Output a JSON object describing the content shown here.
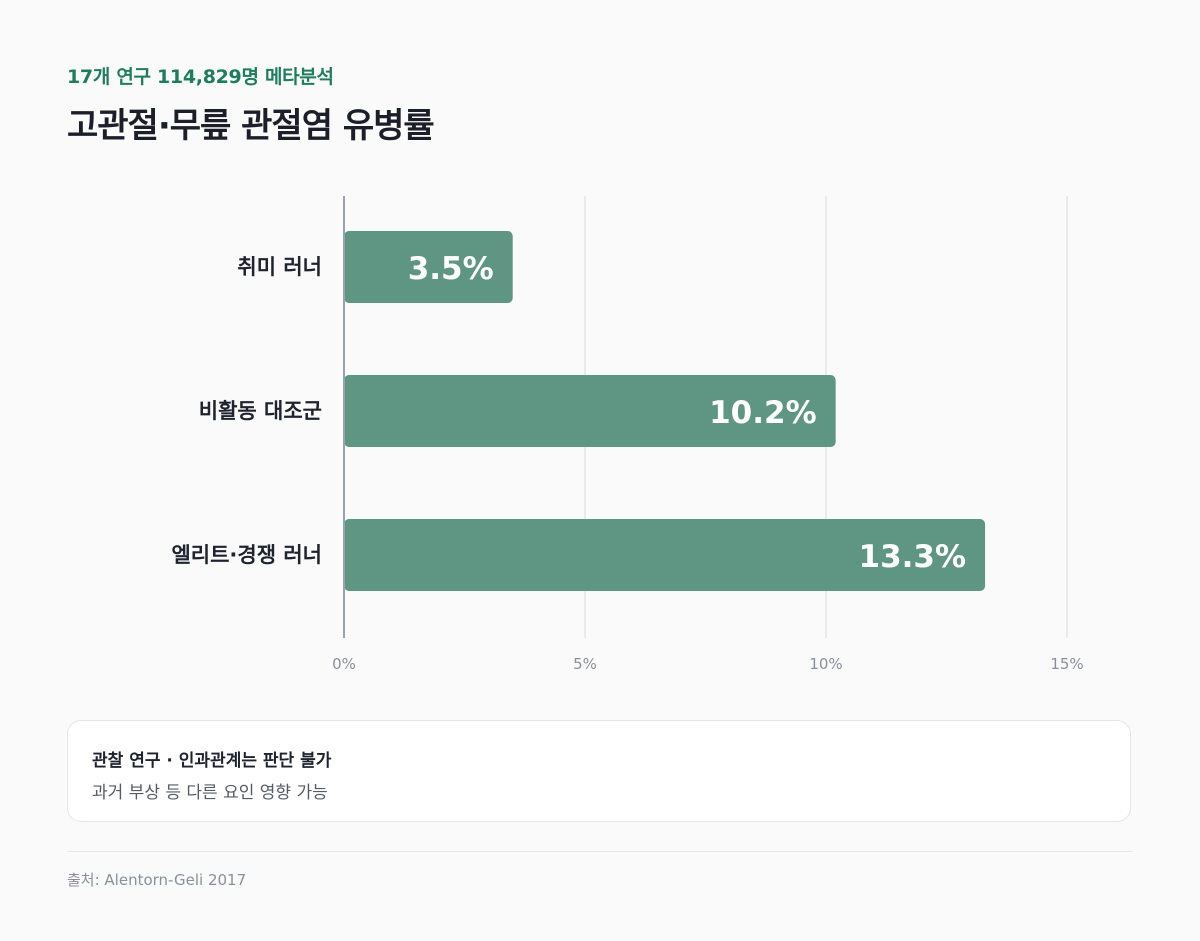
{
  "header": {
    "subtitle": "17개 연구 114,829명 메타분석",
    "title": "고관절·무릎 관절염 유병률"
  },
  "chart_data": {
    "type": "bar",
    "orientation": "horizontal",
    "categories": [
      "취미 러너",
      "비활동 대조군",
      "엘리트·경쟁 러너"
    ],
    "values": [
      3.5,
      10.2,
      13.3
    ],
    "value_labels": [
      "3.5%",
      "10.2%",
      "13.3%"
    ],
    "xlim": [
      0,
      15
    ],
    "xticks": [
      0,
      5,
      10,
      15
    ],
    "xtick_labels": [
      "0%",
      "5%",
      "10%",
      "15%"
    ],
    "grid": "vertical",
    "bar_color": "#5e9583"
  },
  "note": {
    "title": "관찰 연구 · 인과관계는 판단 불가",
    "text": "과거 부상 등 다른 요인 영향 가능"
  },
  "footer": {
    "source": "출처: Alentorn-Geli 2017"
  }
}
